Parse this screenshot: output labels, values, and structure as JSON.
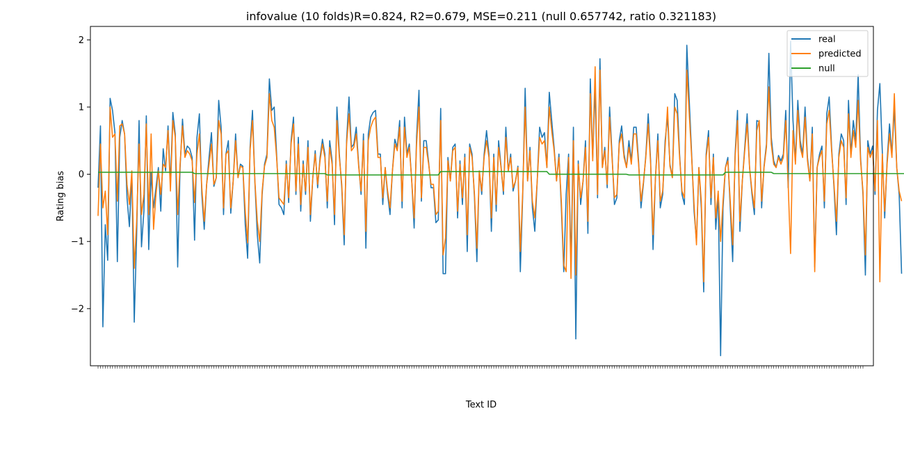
{
  "chart_data": {
    "type": "line",
    "title": "infovalue (10 folds)R=0.824, R2=0.679, MSE=0.211 (null 0.657742, ratio 0.321183)",
    "xlabel": "Text ID",
    "ylabel": "Rating bias",
    "ylim": [
      -2.85,
      2.2
    ],
    "yticks": [
      -2,
      -1,
      0,
      1,
      2
    ],
    "ytick_labels": [
      "−2",
      "−1",
      "0",
      "1",
      "2"
    ],
    "x_count": 318,
    "legend_position": "top-right",
    "grid": false,
    "colors": {
      "real": "#1f77b4",
      "predicted": "#ff7f0e",
      "null": "#2ca02c"
    },
    "series": [
      {
        "name": "real",
        "values": [
          -0.2,
          0.72,
          -2.27,
          -0.75,
          -1.28,
          1.13,
          0.95,
          0.62,
          -1.3,
          0.55,
          0.8,
          0.6,
          -0.35,
          -0.78,
          0.02,
          -2.2,
          -0.9,
          0.8,
          -1.08,
          -0.55,
          0.87,
          -1.12,
          0.02,
          -0.5,
          -0.2,
          0.1,
          -0.55,
          0.38,
          0.05,
          0.72,
          -0.15,
          0.92,
          0.6,
          -1.38,
          0.1,
          0.82,
          0.3,
          0.42,
          0.38,
          0.25,
          -0.98,
          0.55,
          0.9,
          -0.3,
          -0.82,
          -0.15,
          0.25,
          0.62,
          -0.18,
          -0.05,
          1.1,
          0.7,
          -0.6,
          0.3,
          0.5,
          -0.58,
          -0.1,
          0.6,
          -0.05,
          0.15,
          0.12,
          -0.75,
          -1.25,
          0.4,
          0.95,
          -0.12,
          -0.9,
          -1.32,
          -0.3,
          0.15,
          0.3,
          1.42,
          0.95,
          1.0,
          0.3,
          -0.45,
          -0.5,
          -0.6,
          0.2,
          -0.42,
          0.5,
          0.85,
          -0.3,
          0.55,
          -0.55,
          0.2,
          -0.3,
          0.5,
          -0.7,
          -0.05,
          0.35,
          -0.2,
          0.25,
          0.52,
          0.3,
          -0.5,
          0.5,
          0.2,
          -0.75,
          1.0,
          0.3,
          -0.2,
          -1.05,
          0.5,
          1.15,
          0.4,
          0.45,
          0.7,
          0.15,
          -0.3,
          0.6,
          -1.1,
          0.6,
          0.85,
          0.92,
          0.95,
          0.3,
          0.3,
          -0.45,
          0.1,
          -0.3,
          -0.6,
          0.05,
          0.52,
          0.4,
          0.8,
          -0.5,
          0.85,
          0.3,
          0.45,
          -0.1,
          -0.8,
          0.55,
          1.25,
          -0.4,
          0.5,
          0.5,
          0.18,
          -0.2,
          -0.2,
          -0.72,
          -0.68,
          0.98,
          -1.48,
          -1.48,
          0.25,
          -0.1,
          0.4,
          0.45,
          -0.65,
          0.2,
          -0.45,
          0.3,
          -1.15,
          0.45,
          0.3,
          -0.35,
          -1.3,
          0.05,
          -0.3,
          0.3,
          0.65,
          0.3,
          -0.85,
          0.3,
          -0.55,
          0.5,
          0.12,
          -0.3,
          0.7,
          0.05,
          0.3,
          -0.25,
          -0.1,
          0.12,
          -1.45,
          -0.3,
          1.28,
          -0.1,
          0.4,
          -0.5,
          -0.85,
          -0.1,
          0.7,
          0.55,
          0.62,
          0.1,
          1.22,
          0.8,
          0.4,
          -0.1,
          0.3,
          -0.5,
          -1.45,
          -0.3,
          0.3,
          -1.35,
          0.7,
          -2.45,
          0.2,
          -0.45,
          -0.1,
          0.5,
          -0.88,
          1.42,
          0.25,
          1.3,
          -0.35,
          1.72,
          0.1,
          0.4,
          -0.2,
          1.0,
          0.3,
          -0.45,
          -0.35,
          0.5,
          0.72,
          0.3,
          0.1,
          0.5,
          0.2,
          0.7,
          0.7,
          0.2,
          -0.5,
          -0.15,
          0.28,
          0.9,
          0.2,
          -1.12,
          -0.05,
          0.6,
          -0.5,
          -0.3,
          0.5,
          0.85,
          0.15,
          -0.05,
          1.2,
          1.1,
          0.3,
          -0.3,
          -0.45,
          1.92,
          1.1,
          0.3,
          -0.55,
          -1.0,
          0.1,
          -0.5,
          -1.75,
          0.3,
          0.65,
          -0.45,
          0.3,
          -0.82,
          -0.3,
          -2.7,
          -0.5,
          0.1,
          0.25,
          -0.5,
          -1.3,
          0.3,
          0.95,
          -0.85,
          -0.1,
          0.4,
          0.9,
          0.1,
          -0.3,
          -0.6,
          0.8,
          0.78,
          -0.5,
          0.12,
          0.45,
          1.8,
          0.55,
          0.2,
          0.1,
          0.28,
          0.2,
          0.3,
          0.95,
          -0.2,
          1.98,
          0.8,
          0.2,
          1.1,
          0.5,
          0.3,
          1.0,
          0.25,
          -0.1,
          0.7,
          -1.38,
          0.1,
          0.3,
          0.42,
          -0.5,
          0.9,
          1.15,
          0.4,
          -0.2,
          -0.9,
          0.3,
          0.6,
          0.5,
          -0.45,
          1.1,
          0.3,
          0.8,
          0.5,
          1.48,
          0.25,
          -0.3,
          -1.5,
          0.5,
          0.3,
          0.42,
          -0.3,
          0.95,
          1.35,
          0.35,
          -0.65,
          0.2,
          0.75,
          0.3,
          0.98,
          0.1,
          -0.3,
          -1.48
        ],
        "line_width": 2
      },
      {
        "name": "predicted",
        "values": [
          -0.62,
          0.45,
          -0.5,
          -0.25,
          -0.9,
          1.0,
          0.55,
          0.6,
          -0.4,
          0.72,
          0.75,
          0.6,
          -0.15,
          -0.45,
          0.05,
          -1.4,
          -0.7,
          0.45,
          -0.6,
          -0.3,
          0.75,
          -0.6,
          0.6,
          -0.82,
          -0.3,
          0.05,
          -0.3,
          0.15,
          0.1,
          0.65,
          -0.25,
          0.8,
          0.55,
          -0.6,
          0.15,
          0.72,
          0.25,
          0.35,
          0.3,
          0.2,
          -0.42,
          0.3,
          0.6,
          -0.2,
          -0.7,
          -0.15,
          0.15,
          0.45,
          -0.15,
          -0.05,
          0.8,
          0.6,
          -0.5,
          0.3,
          0.35,
          -0.5,
          -0.1,
          0.5,
          -0.05,
          0.12,
          0.1,
          -0.55,
          -1.02,
          0.35,
          0.8,
          -0.1,
          -0.7,
          -1.0,
          -0.25,
          0.12,
          0.25,
          1.2,
          0.8,
          0.7,
          0.25,
          -0.35,
          -0.4,
          -0.45,
          0.15,
          -0.35,
          0.45,
          0.75,
          -0.25,
          0.45,
          -0.45,
          0.15,
          -0.25,
          0.4,
          -0.6,
          -0.05,
          0.3,
          -0.15,
          0.2,
          0.45,
          0.25,
          -0.4,
          0.4,
          0.15,
          -0.6,
          0.8,
          0.25,
          -0.15,
          -0.9,
          0.45,
          0.9,
          0.35,
          0.4,
          0.6,
          0.12,
          -0.25,
          0.5,
          -0.85,
          0.5,
          0.7,
          0.8,
          0.85,
          0.25,
          0.25,
          -0.35,
          0.1,
          -0.25,
          -0.5,
          0.05,
          0.45,
          0.35,
          0.7,
          -0.4,
          0.7,
          0.25,
          0.4,
          -0.1,
          -0.65,
          0.45,
          1.0,
          -0.35,
          0.4,
          0.4,
          0.15,
          -0.15,
          -0.15,
          -0.6,
          -0.55,
          0.8,
          -1.2,
          -0.95,
          0.2,
          -0.1,
          0.35,
          0.4,
          -0.55,
          0.15,
          -0.35,
          0.25,
          -0.9,
          0.4,
          0.25,
          -0.3,
          -1.1,
          0.05,
          -0.25,
          0.25,
          0.5,
          0.25,
          -0.65,
          0.25,
          -0.45,
          0.4,
          0.1,
          -0.25,
          0.55,
          0.05,
          0.25,
          -0.2,
          -0.1,
          0.1,
          -1.15,
          -0.25,
          1.0,
          -0.1,
          0.35,
          -0.4,
          -0.65,
          -0.1,
          0.55,
          0.45,
          0.5,
          0.1,
          1.0,
          0.65,
          0.35,
          -0.1,
          0.25,
          -0.4,
          -1.35,
          -1.45,
          0.25,
          -1.55,
          0.5,
          -1.5,
          0.15,
          -0.35,
          -0.1,
          0.4,
          -0.7,
          1.2,
          0.2,
          1.6,
          -0.3,
          1.55,
          0.1,
          0.35,
          -0.15,
          0.85,
          0.25,
          -0.35,
          -0.3,
          0.45,
          0.6,
          0.25,
          0.1,
          0.4,
          0.15,
          0.6,
          0.6,
          0.15,
          -0.4,
          -0.12,
          0.25,
          0.75,
          0.15,
          -0.9,
          -0.05,
          0.5,
          -0.4,
          -0.25,
          0.4,
          1.0,
          0.12,
          -0.05,
          1.0,
          0.9,
          0.25,
          -0.25,
          -0.35,
          1.55,
          0.9,
          0.25,
          -0.45,
          -1.05,
          0.1,
          -0.4,
          -1.6,
          0.25,
          0.55,
          -0.35,
          0.25,
          -0.65,
          -0.25,
          -1.0,
          -0.4,
          0.1,
          0.2,
          -0.4,
          -1.05,
          0.25,
          0.8,
          -0.7,
          -0.1,
          0.35,
          0.75,
          0.1,
          -0.25,
          -0.5,
          0.65,
          0.8,
          -0.4,
          0.1,
          0.4,
          1.3,
          0.45,
          0.15,
          0.1,
          0.25,
          0.15,
          0.25,
          0.8,
          -0.15,
          -1.18,
          0.65,
          0.15,
          0.95,
          0.4,
          0.25,
          0.85,
          0.2,
          -0.1,
          0.6,
          -1.45,
          0.1,
          0.25,
          0.35,
          -0.4,
          0.75,
          0.95,
          0.35,
          -0.15,
          -0.7,
          0.25,
          0.5,
          0.4,
          -0.35,
          0.9,
          0.25,
          0.65,
          0.4,
          1.1,
          0.2,
          -0.25,
          -1.2,
          0.4,
          0.25,
          0.35,
          -0.25,
          0.8,
          -1.6,
          0.3,
          -0.55,
          0.15,
          0.6,
          0.25,
          1.2,
          0.1,
          -0.25,
          -0.4
        ],
        "line_width": 2
      },
      {
        "name": "null",
        "values": [
          0.03,
          0.03,
          0.03,
          0.03,
          0.03,
          0.03,
          0.03,
          0.03,
          0.03,
          0.03,
          0.03,
          0.03,
          0.03,
          0.03,
          0.03,
          0.03,
          0.03,
          0.03,
          0.03,
          0.03,
          0.03,
          0.03,
          0.03,
          0.03,
          0.03,
          0.03,
          0.03,
          0.03,
          0.03,
          0.03,
          0.03,
          0.03,
          0.03,
          0.03,
          0.03,
          0.03,
          0.03,
          0.03,
          0.03,
          0.03,
          0.01,
          0.01,
          0.01,
          0.01,
          0.01,
          0.01,
          0.01,
          0.01,
          0.01,
          0.01,
          0.01,
          0.01,
          0.01,
          0.01,
          0.01,
          0.01,
          0.01,
          0.01,
          0.01,
          0.01,
          0.01,
          0.01,
          0.01,
          0.01,
          0.01,
          0.01,
          0.01,
          0.01,
          0.01,
          0.01,
          0.01,
          0.01,
          0.01,
          0.01,
          0.01,
          0.01,
          0.01,
          0.01,
          0.01,
          0.01,
          0.01,
          0.01,
          0.01,
          0.01,
          0.01,
          0.01,
          0.01,
          0.01,
          0.01,
          0.01,
          0.01,
          0.01,
          0.01,
          0.01,
          0.01,
          -0.01,
          -0.01,
          -0.01,
          -0.01,
          -0.01,
          -0.01,
          -0.01,
          -0.01,
          -0.01,
          -0.01,
          -0.01,
          -0.01,
          -0.01,
          -0.01,
          -0.01,
          -0.01,
          -0.01,
          -0.01,
          -0.01,
          -0.01,
          -0.01,
          -0.01,
          -0.01,
          -0.01,
          -0.01,
          -0.01,
          -0.01,
          -0.01,
          -0.01,
          -0.01,
          -0.01,
          -0.01,
          -0.01,
          -0.01,
          -0.01,
          -0.01,
          -0.01,
          -0.01,
          -0.01,
          -0.01,
          -0.01,
          -0.01,
          -0.01,
          -0.01,
          -0.01,
          -0.01,
          -0.01,
          0.04,
          0.04,
          0.04,
          0.04,
          0.04,
          0.04,
          0.04,
          0.04,
          0.04,
          0.04,
          0.04,
          0.04,
          0.04,
          0.04,
          0.04,
          0.04,
          0.04,
          0.04,
          0.04,
          0.04,
          0.04,
          0.04,
          0.04,
          0.04,
          0.04,
          0.04,
          0.04,
          0.04,
          0.04,
          0.04,
          0.04,
          0.04,
          0.04,
          0.04,
          0.04,
          0.04,
          0.04,
          0.04,
          0.04,
          0.04,
          0.04,
          0.04,
          0.04,
          0.04,
          0.04,
          0.0,
          0.0,
          0.0,
          0.0,
          0.0,
          0.0,
          0.0,
          0.0,
          0.0,
          0.0,
          0.0,
          0.0,
          0.0,
          0.0,
          0.0,
          0.0,
          0.0,
          0.0,
          0.0,
          0.0,
          0.0,
          0.0,
          0.0,
          0.0,
          0.0,
          0.0,
          0.0,
          0.0,
          0.0,
          0.0,
          0.0,
          0.0,
          0.0,
          -0.01,
          -0.01,
          -0.01,
          -0.01,
          -0.01,
          -0.01,
          -0.01,
          -0.01,
          -0.01,
          -0.01,
          -0.01,
          -0.01,
          -0.01,
          -0.01,
          -0.01,
          -0.01,
          -0.01,
          -0.01,
          -0.01,
          -0.01,
          -0.01,
          -0.01,
          -0.01,
          -0.01,
          -0.01,
          -0.01,
          -0.01,
          -0.01,
          -0.01,
          -0.01,
          -0.01,
          -0.01,
          -0.01,
          -0.01,
          -0.01,
          -0.01,
          -0.01,
          -0.01,
          -0.01,
          -0.01,
          0.03,
          0.03,
          0.03,
          0.03,
          0.03,
          0.03,
          0.03,
          0.03,
          0.03,
          0.03,
          0.03,
          0.03,
          0.03,
          0.03,
          0.03,
          0.03,
          0.03,
          0.03,
          0.03,
          0.03,
          0.01,
          0.01,
          0.01,
          0.01,
          0.01,
          0.01,
          0.01,
          0.01,
          0.01,
          0.01,
          0.01,
          0.01,
          0.01,
          0.01,
          0.01,
          0.01,
          0.01,
          0.01,
          0.01,
          0.01,
          0.01,
          0.01,
          0.01,
          0.01,
          0.01,
          0.01,
          0.01,
          0.01,
          0.01,
          0.01,
          0.01,
          0.01,
          0.01,
          0.01,
          0.01,
          0.01,
          0.01,
          0.01,
          0.01,
          0.01,
          0.01,
          0.01,
          0.01,
          0.01,
          0.01,
          0.01,
          0.01,
          0.01,
          0.01,
          0.01,
          0.01,
          0.01,
          0.01,
          0.01,
          0.01,
          0.01,
          0.01,
          0.04,
          0.04,
          0.04,
          0.04,
          0.04,
          0.04,
          0.04,
          0.04,
          0.04,
          0.04,
          0.04,
          0.04,
          0.04,
          0.04,
          0.04
        ],
        "line_width": 2
      }
    ]
  }
}
